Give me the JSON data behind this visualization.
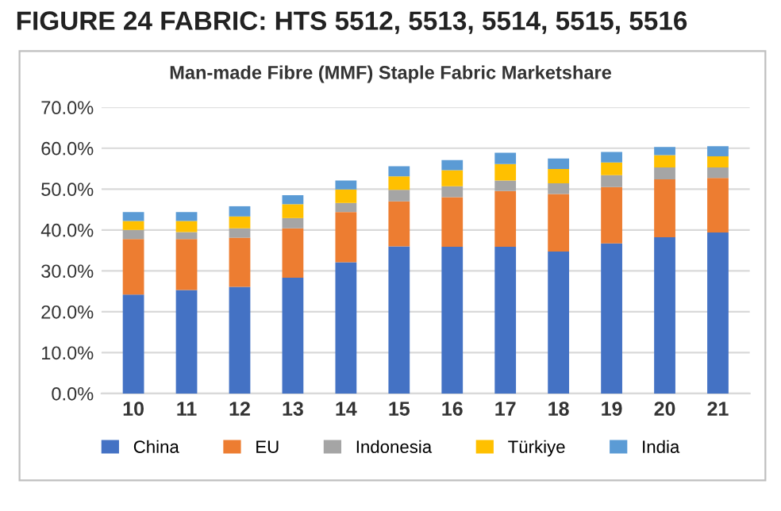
{
  "chart_data": {
    "type": "bar",
    "title": "FIGURE 24 FABRIC: HTS 5512, 5513, 5514, 5515, 5516",
    "subtitle": "Man-made Fibre (MMF) Staple Fabric Marketshare",
    "categories": [
      "10",
      "11",
      "12",
      "13",
      "14",
      "15",
      "16",
      "17",
      "18",
      "19",
      "20",
      "21"
    ],
    "stacked": true,
    "series": [
      {
        "name": "China",
        "color": "#4472c4",
        "values": [
          24.2,
          25.3,
          26.1,
          28.3,
          32.1,
          36.0,
          35.9,
          35.9,
          34.7,
          36.7,
          38.2,
          39.4
        ]
      },
      {
        "name": "EU",
        "color": "#ed7d31",
        "values": [
          13.6,
          12.5,
          12.0,
          12.1,
          12.3,
          11.0,
          12.1,
          13.6,
          14.1,
          13.8,
          14.2,
          13.3
        ]
      },
      {
        "name": "Indonesia",
        "color": "#a5a5a5",
        "values": [
          2.2,
          1.7,
          2.3,
          2.5,
          2.2,
          2.8,
          2.7,
          2.6,
          2.6,
          2.9,
          2.9,
          2.6
        ]
      },
      {
        "name": "Türkiye",
        "color": "#ffc000",
        "values": [
          2.2,
          2.7,
          2.9,
          3.4,
          3.3,
          3.3,
          3.9,
          4.0,
          3.5,
          3.1,
          3.0,
          2.7
        ]
      },
      {
        "name": "India",
        "color": "#5b9bd5",
        "values": [
          2.2,
          2.2,
          2.5,
          2.2,
          2.2,
          2.5,
          2.5,
          2.8,
          2.6,
          2.6,
          2.0,
          2.5
        ]
      }
    ],
    "ylim": [
      0,
      70
    ],
    "yticks": [
      {
        "value": 0,
        "label": "0.0%"
      },
      {
        "value": 10,
        "label": "10.0%"
      },
      {
        "value": 20,
        "label": "20.0%"
      },
      {
        "value": 30,
        "label": "30.0%"
      },
      {
        "value": 40,
        "label": "40.0%"
      },
      {
        "value": 50,
        "label": "50.0%"
      },
      {
        "value": 60,
        "label": "60.0%"
      },
      {
        "value": 70,
        "label": "70.0%"
      }
    ],
    "grid": "y",
    "legend": "bottom"
  }
}
